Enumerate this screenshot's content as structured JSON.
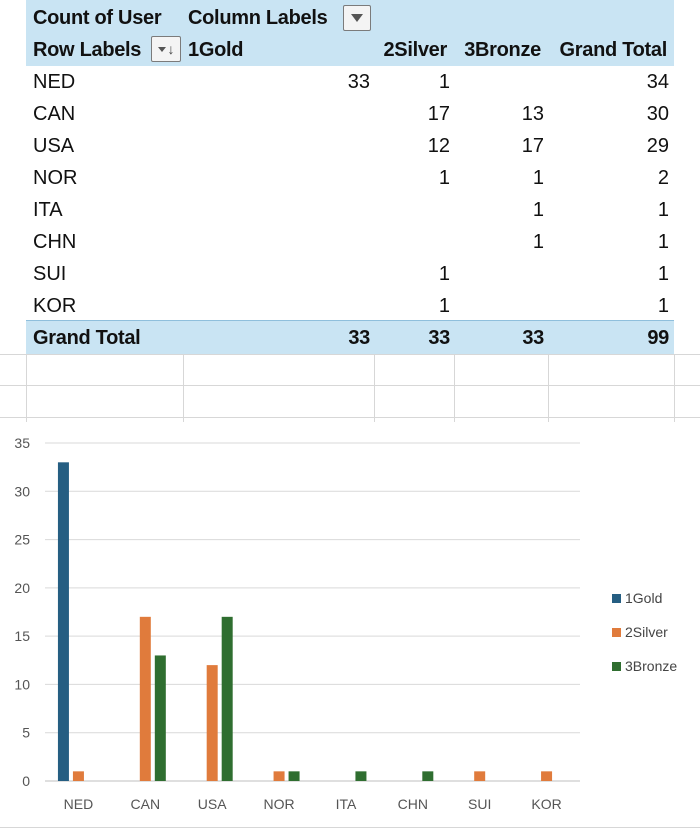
{
  "pivot": {
    "value_field": "Count of User",
    "column_labels": "Column Labels",
    "row_labels": "Row Labels",
    "columns": [
      "1Gold",
      "2Silver",
      "3Bronze",
      "Grand Total"
    ],
    "rows": [
      {
        "label": "NED",
        "values": [
          "33",
          "1",
          "",
          "34"
        ]
      },
      {
        "label": "CAN",
        "values": [
          "",
          "17",
          "13",
          "30"
        ]
      },
      {
        "label": "USA",
        "values": [
          "",
          "12",
          "17",
          "29"
        ]
      },
      {
        "label": "NOR",
        "values": [
          "",
          "1",
          "1",
          "2"
        ]
      },
      {
        "label": "ITA",
        "values": [
          "",
          "",
          "1",
          "1"
        ]
      },
      {
        "label": "CHN",
        "values": [
          "",
          "",
          "1",
          "1"
        ]
      },
      {
        "label": "SUI",
        "values": [
          "",
          "1",
          "",
          "1"
        ]
      },
      {
        "label": "KOR",
        "values": [
          "",
          "1",
          "",
          "1"
        ]
      }
    ],
    "grand_total": {
      "label": "Grand Total",
      "values": [
        "33",
        "33",
        "33",
        "99"
      ]
    },
    "header_band_color": "#c9e4f3"
  },
  "chart_data": {
    "type": "bar",
    "categories": [
      "NED",
      "CAN",
      "USA",
      "NOR",
      "ITA",
      "CHN",
      "SUI",
      "KOR"
    ],
    "series": [
      {
        "name": "1Gold",
        "color": "#255e82",
        "values": [
          33,
          0,
          0,
          0,
          0,
          0,
          0,
          0
        ]
      },
      {
        "name": "2Silver",
        "color": "#e07b3c",
        "values": [
          1,
          17,
          12,
          1,
          0,
          0,
          1,
          1
        ]
      },
      {
        "name": "3Bronze",
        "color": "#2f6e30",
        "values": [
          0,
          13,
          17,
          1,
          1,
          1,
          0,
          0
        ]
      }
    ],
    "ylim": [
      0,
      35
    ],
    "yticks": [
      0,
      5,
      10,
      15,
      20,
      25,
      30,
      35
    ],
    "grid": true,
    "legend": "right"
  }
}
